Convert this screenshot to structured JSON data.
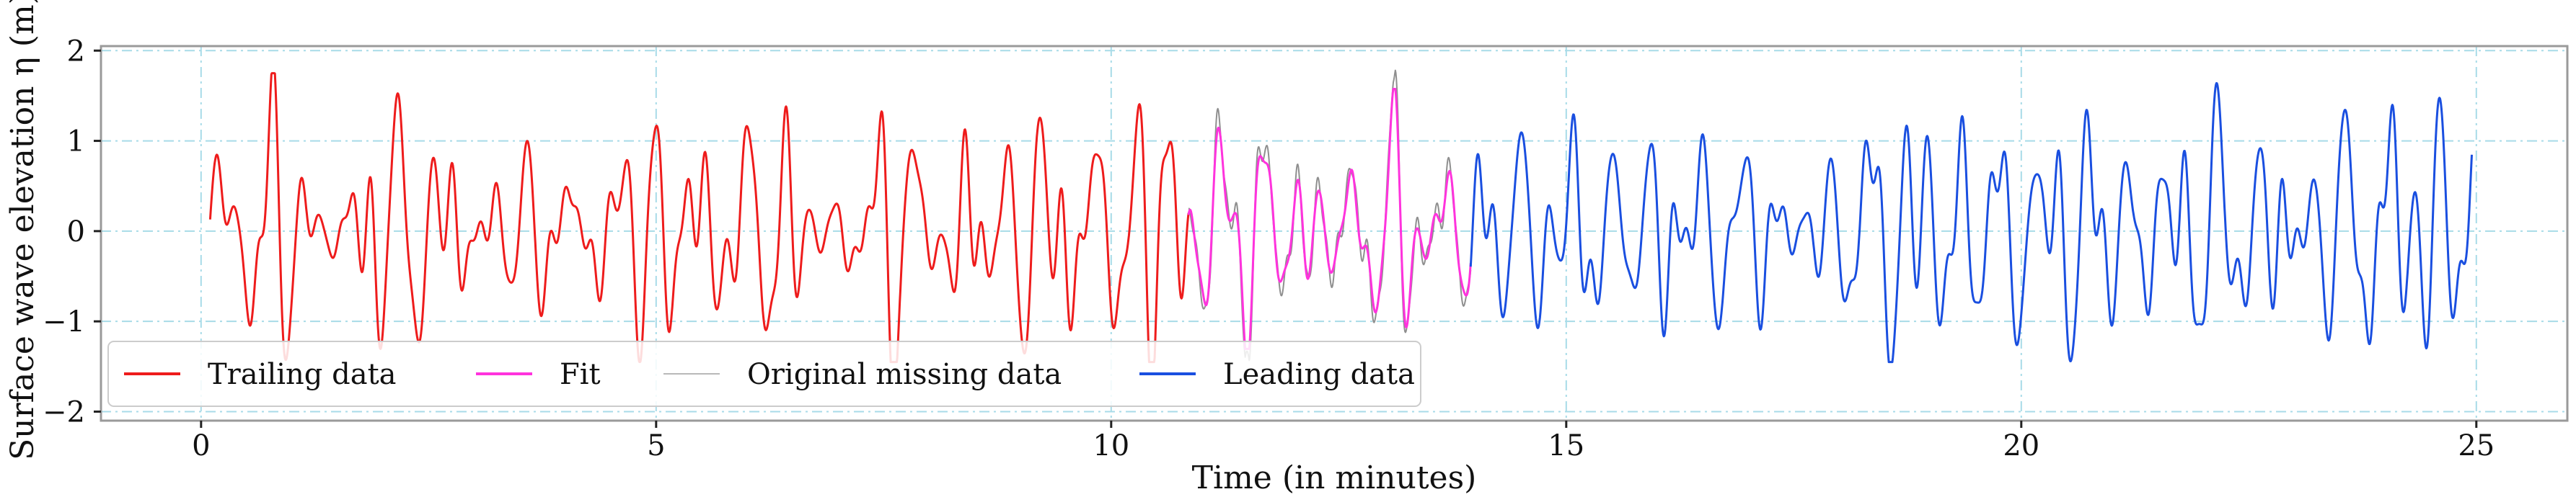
{
  "chart_data": {
    "type": "line",
    "xlabel": "Time (in minutes)",
    "ylabel": "Surface wave elevation η (m)",
    "xlim": [
      -1.1,
      26.0
    ],
    "ylim": [
      -2.1,
      2.05
    ],
    "xticks": [
      0,
      5,
      10,
      15,
      20,
      25
    ],
    "yticks": [
      -2,
      -1,
      0,
      1,
      2
    ],
    "grid": true,
    "legend_position": "lower-left",
    "series": [
      {
        "name": "Trailing data",
        "color": "#ee1c1c",
        "x_range": [
          0.1,
          10.85
        ]
      },
      {
        "name": "Fit",
        "color": "#ff33dd",
        "x_range": [
          10.85,
          13.95
        ]
      },
      {
        "name": "Original missing data",
        "color": "#333333",
        "x_range": [
          10.85,
          13.95
        ]
      },
      {
        "name": "Leading data",
        "color": "#1a4fe0",
        "x_range": [
          13.95,
          24.95
        ]
      }
    ],
    "colors": {
      "grid": "#a8dbe8",
      "frame": "#9a9a9a"
    }
  }
}
